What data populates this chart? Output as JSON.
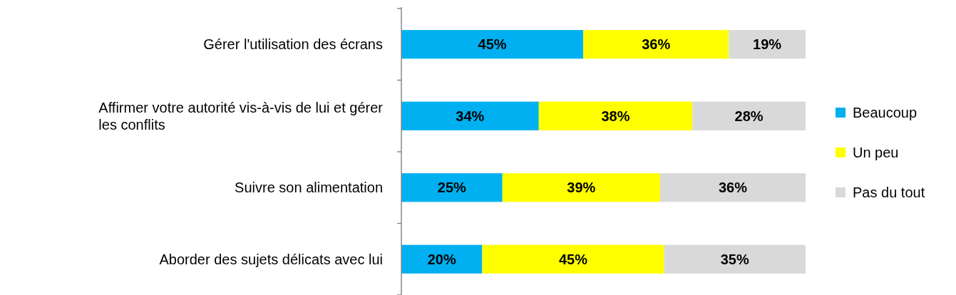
{
  "chart_data": {
    "type": "bar",
    "orientation": "horizontal",
    "stacked": true,
    "categories": [
      "Gérer l'utilisation des écrans",
      "Affirmer votre autorité vis-à-vis de lui et gérer les conflits",
      "Suivre son alimentation",
      "Aborder des sujets délicats avec lui"
    ],
    "series": [
      {
        "name": "Beaucoup",
        "color": "#00b0f0",
        "values": [
          45,
          34,
          25,
          20
        ],
        "value_labels": [
          "45%",
          "34%",
          "25%",
          "20%"
        ]
      },
      {
        "name": "Un peu",
        "color": "#ffff00",
        "values": [
          36,
          38,
          39,
          45
        ],
        "value_labels": [
          "36%",
          "38%",
          "39%",
          "45%"
        ]
      },
      {
        "name": "Pas du tout",
        "color": "#d9d9d9",
        "values": [
          19,
          28,
          36,
          35
        ],
        "value_labels": [
          "19%",
          "28%",
          "36%",
          "35%"
        ]
      }
    ],
    "xlim": [
      0,
      100
    ],
    "tick_labels": "y",
    "legend": "right"
  }
}
